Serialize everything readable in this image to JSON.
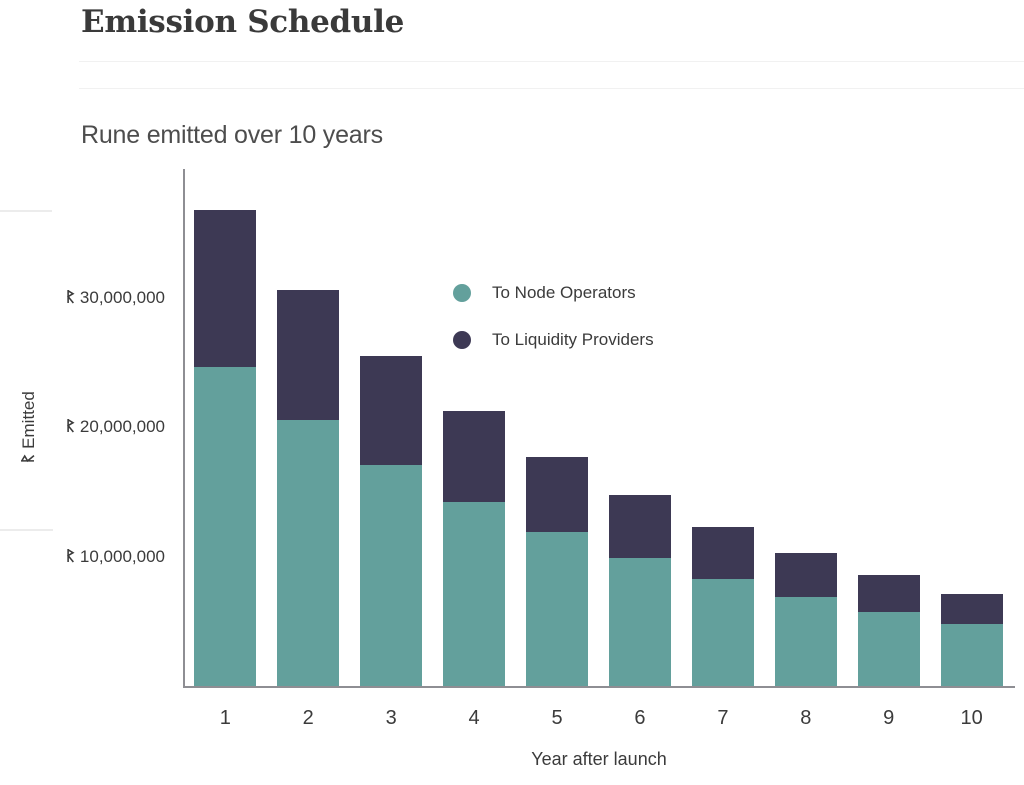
{
  "page": {
    "title": "Emission Schedule",
    "subtitle": "Rune emitted over 10 years"
  },
  "chart_data": {
    "type": "bar",
    "stacked": true,
    "title": "Rune emitted over 10 years",
    "unit": "RUNE",
    "categories": [
      "1",
      "2",
      "3",
      "4",
      "5",
      "6",
      "7",
      "8",
      "9",
      "10"
    ],
    "series": [
      {
        "name": "To Node Operators",
        "color": "#63a09c",
        "values": [
          24620000,
          20520000,
          17100000,
          14250000,
          11870000,
          9890000,
          8240000,
          6870000,
          5720000,
          4770000
        ]
      },
      {
        "name": "To Liquidity Providers",
        "color": "#3d3954",
        "values": [
          12130000,
          10110000,
          8420000,
          7020000,
          5850000,
          4870000,
          4060000,
          3380000,
          2820000,
          2350000
        ]
      }
    ],
    "totals": [
      36750000,
      30630000,
      25520000,
      21270000,
      17720000,
      14760000,
      12300000,
      10250000,
      8540000,
      7120000
    ],
    "xlabel": "Year after launch",
    "y_axis": {
      "label": "ᚱ Emitted",
      "symbol": "ᚱ",
      "ticks": [
        {
          "value": 10000000,
          "label": "ᚱ 10,000,000"
        },
        {
          "value": 20000000,
          "label": "ᚱ 20,000,000"
        },
        {
          "value": 30000000,
          "label": "ᚱ 30,000,000"
        }
      ]
    },
    "ylim": [
      0,
      40000000
    ],
    "grid": false,
    "legend_position": "inside-top-right"
  }
}
